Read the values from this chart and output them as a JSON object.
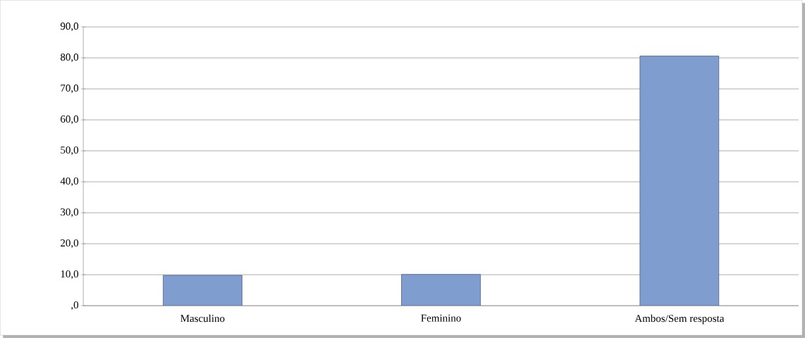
{
  "chart_data": {
    "type": "bar",
    "categories": [
      "Masculino",
      "Feminino",
      "Ambos/Sem resposta"
    ],
    "values": [
      9.8,
      10.1,
      80.6
    ],
    "color": "#809dd0",
    "ylim": [
      0,
      90
    ],
    "yticks": [
      {
        "value": 0,
        "label": ",0"
      },
      {
        "value": 10,
        "label": "10,0"
      },
      {
        "value": 20,
        "label": "20,0"
      },
      {
        "value": 30,
        "label": "30,0"
      },
      {
        "value": 40,
        "label": "40,0"
      },
      {
        "value": 50,
        "label": "50,0"
      },
      {
        "value": 60,
        "label": "60,0"
      },
      {
        "value": 70,
        "label": "70,0"
      },
      {
        "value": 80,
        "label": "80,0"
      },
      {
        "value": 90,
        "label": "90,0"
      }
    ],
    "grid": "y"
  }
}
